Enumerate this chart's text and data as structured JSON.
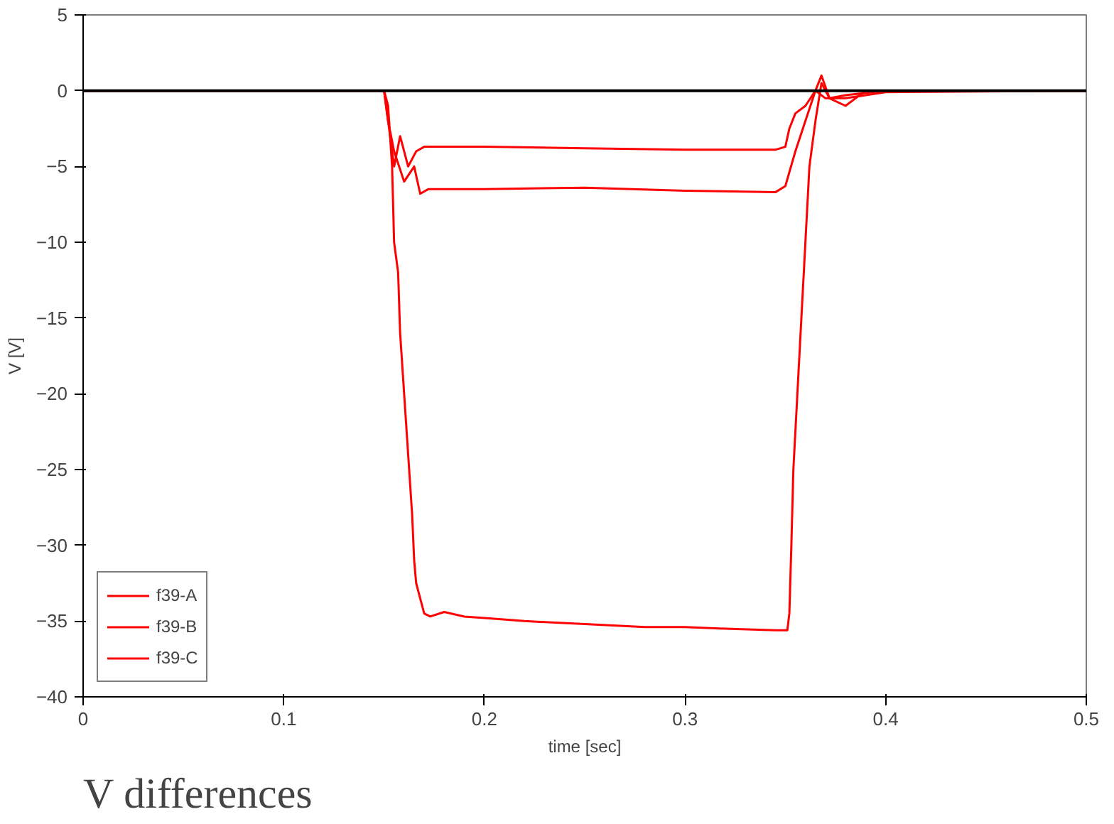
{
  "chart_data": {
    "type": "line",
    "title": "V differences",
    "xlabel": "time [sec]",
    "ylabel": "V [V]",
    "xlim": [
      0,
      0.5
    ],
    "ylim": [
      -40,
      5
    ],
    "xticks": [
      0,
      0.1,
      0.2,
      0.3,
      0.4,
      0.5
    ],
    "yticks": [
      5,
      0,
      -5,
      -10,
      -15,
      -20,
      -25,
      -30,
      -35,
      -40
    ],
    "grid": false,
    "legend": "bottom left",
    "marker": "none",
    "line_style": "solid",
    "ref_lines": [
      {
        "axis": "y",
        "value": 0,
        "color": "#000000"
      }
    ],
    "series": [
      {
        "name": "f39-A",
        "color": "#ff0000",
        "x": [
          0,
          0.15,
          0.152,
          0.155,
          0.158,
          0.162,
          0.166,
          0.17,
          0.2,
          0.25,
          0.3,
          0.345,
          0.35,
          0.352,
          0.355,
          0.36,
          0.365,
          0.368,
          0.372,
          0.38,
          0.4,
          0.5
        ],
        "values": [
          0,
          0,
          -2,
          -5,
          -3,
          -5,
          -4,
          -3.7,
          -3.7,
          -3.8,
          -3.9,
          -3.9,
          -3.7,
          -2.5,
          -1.5,
          -1,
          0,
          1,
          -0.5,
          -0.3,
          0,
          0
        ]
      },
      {
        "name": "f39-B",
        "color": "#ff0000",
        "x": [
          0,
          0.15,
          0.152,
          0.155,
          0.16,
          0.165,
          0.168,
          0.172,
          0.2,
          0.25,
          0.3,
          0.345,
          0.35,
          0.355,
          0.36,
          0.365,
          0.37,
          0.38,
          0.4,
          0.5
        ],
        "values": [
          0,
          0,
          -2,
          -4,
          -6,
          -5,
          -6.8,
          -6.5,
          -6.5,
          -6.4,
          -6.6,
          -6.7,
          -6.3,
          -4,
          -2,
          0,
          -0.5,
          -0.5,
          -0.1,
          0
        ]
      },
      {
        "name": "f39-C",
        "color": "#ff0000",
        "x": [
          0,
          0.15,
          0.152,
          0.154,
          0.155,
          0.157,
          0.158,
          0.16,
          0.162,
          0.164,
          0.165,
          0.166,
          0.168,
          0.17,
          0.173,
          0.18,
          0.19,
          0.2,
          0.22,
          0.25,
          0.28,
          0.3,
          0.32,
          0.345,
          0.351,
          0.352,
          0.353,
          0.354,
          0.356,
          0.358,
          0.36,
          0.362,
          0.365,
          0.368,
          0.372,
          0.38,
          0.39,
          0.4,
          0.5
        ],
        "values": [
          0,
          0,
          -1,
          -5,
          -10,
          -12,
          -16,
          -20,
          -24,
          -28,
          -31,
          -32.5,
          -33.5,
          -34.5,
          -34.7,
          -34.4,
          -34.7,
          -34.8,
          -35,
          -35.2,
          -35.4,
          -35.4,
          -35.5,
          -35.6,
          -35.6,
          -34.5,
          -30,
          -25,
          -20,
          -15,
          -10,
          -5,
          -2,
          0.5,
          -0.5,
          -1,
          0,
          0,
          0
        ]
      }
    ]
  }
}
